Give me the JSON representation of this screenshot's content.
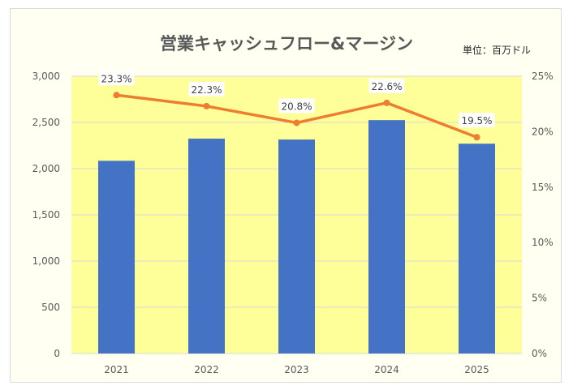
{
  "chart_data": {
    "type": "bar+line",
    "title": "営業キャッシュフロー&マージン",
    "unit_note": "単位：百万ドル",
    "categories": [
      "2021",
      "2022",
      "2023",
      "2024",
      "2025"
    ],
    "series": [
      {
        "name": "営業キャッシュフロー",
        "kind": "bar",
        "axis": "left",
        "color": "#4472c4",
        "values": [
          2085,
          2325,
          2315,
          2525,
          2270
        ]
      },
      {
        "name": "マージン",
        "kind": "line",
        "axis": "right",
        "color": "#ed7d31",
        "values": [
          23.3,
          22.3,
          20.8,
          22.6,
          19.5
        ],
        "labels": [
          "23.3%",
          "22.3%",
          "20.8%",
          "22.6%",
          "19.5%"
        ]
      }
    ],
    "y_left": {
      "min": 0,
      "max": 3000,
      "step": 500,
      "tick_labels": [
        "0",
        "500",
        "1,000",
        "1,500",
        "2,000",
        "2,500",
        "3,000"
      ]
    },
    "y_right": {
      "min": 0,
      "max": 25,
      "step": 5,
      "tick_labels": [
        "0%",
        "5%",
        "10%",
        "15%",
        "20%",
        "25%"
      ]
    },
    "grid": true,
    "colors": {
      "plot_bg": "#ffff99",
      "frame_bg": "#fffff2",
      "gridline": "#d9d9d9"
    }
  }
}
